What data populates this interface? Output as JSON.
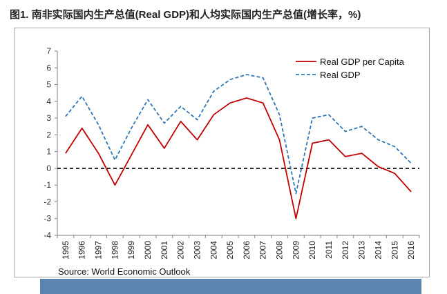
{
  "title": "图1. 南非实际国内生产总值(Real GDP)和人均实际国内生产总值(增长率，%)",
  "source": "Source: World Economic Outlook",
  "chart_data": {
    "type": "line",
    "x": [
      "1995",
      "1996",
      "1997",
      "1998",
      "1999",
      "2000",
      "2001",
      "2002",
      "2003",
      "2004",
      "2005",
      "2006",
      "2007",
      "2008",
      "2009",
      "2010",
      "2011",
      "2012",
      "2013",
      "2014",
      "2015",
      "2016"
    ],
    "series": [
      {
        "name": "Real GDP per Capita",
        "color": "#c00000",
        "style": "solid",
        "values": [
          0.9,
          2.4,
          0.9,
          -1.0,
          0.8,
          2.6,
          1.2,
          2.8,
          1.7,
          3.2,
          3.9,
          4.2,
          3.9,
          1.7,
          -3.0,
          1.5,
          1.7,
          0.7,
          0.9,
          0.1,
          -0.3,
          -1.4
        ]
      },
      {
        "name": "Real GDP",
        "color": "#2e75b6",
        "style": "dashed",
        "values": [
          3.1,
          4.3,
          2.6,
          0.5,
          2.4,
          4.1,
          2.7,
          3.7,
          2.9,
          4.6,
          5.3,
          5.6,
          5.4,
          3.2,
          -1.5,
          3.0,
          3.2,
          2.2,
          2.5,
          1.7,
          1.3,
          0.3
        ]
      }
    ],
    "yticks": [
      "7",
      "6",
      "5",
      "4",
      "3",
      "2",
      "1",
      "0",
      "-1",
      "-2",
      "-3",
      "-4"
    ],
    "ylim": [
      -4,
      7
    ],
    "zero_line": {
      "style": "dashed",
      "color": "#000000"
    },
    "legend_position": "top-right",
    "grid": false
  }
}
